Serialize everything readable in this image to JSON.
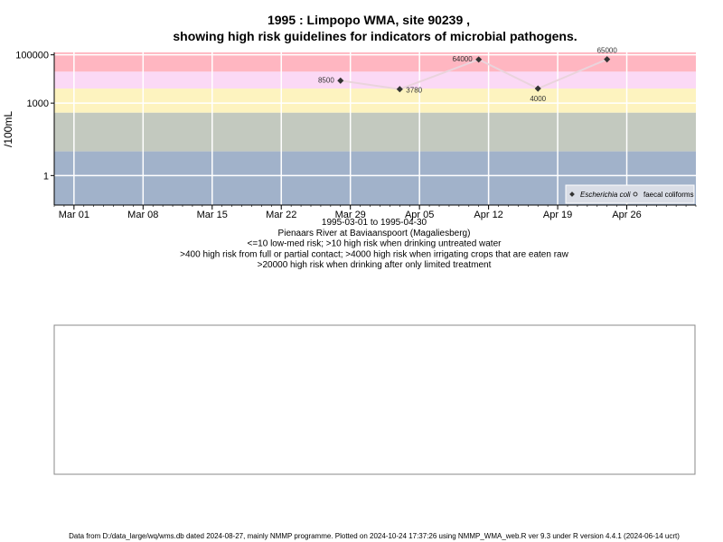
{
  "chart_data": {
    "type": "line",
    "title": "1995 : Limpopo WMA, site 90239 ,",
    "subtitle": "showing high risk guidelines for indicators of microbial pathogens.",
    "ylabel": "/100mL",
    "x_notes": [
      "1995-03-01 to 1995-04-30",
      "Pienaars River at Baviaanspoort (Magaliesberg)",
      "<=10 low-med risk; >10 high risk when drinking untreated water",
      ">400 high risk from full or partial contact; >4000 high risk when irrigating crops that are eaten raw",
      ">20000 high risk when drinking after only limited treatment"
    ],
    "footer": "Data from D:/data_large/wq/wms.db dated 2024-08-27, mainly NMMP programme. Plotted on 2024-10-24 17:37:26 using NMMP_WMA_web.R ver 9.3 under R version 4.4.1 (2024-06-14 ucrt)",
    "log_y": true,
    "grid": true,
    "legend_position": "bottom-right",
    "x": [
      "1995-03-28",
      "1995-04-03",
      "1995-04-11",
      "1995-04-17",
      "1995-04-24"
    ],
    "xlim": [
      "1995-02-27",
      "1995-05-03"
    ],
    "xticks": [
      {
        "value": "1995-03-01",
        "label": "Mar 01"
      },
      {
        "value": "1995-03-08",
        "label": "Mar 08"
      },
      {
        "value": "1995-03-15",
        "label": "Mar 15"
      },
      {
        "value": "1995-03-22",
        "label": "Mar 22"
      },
      {
        "value": "1995-03-29",
        "label": "Mar 29"
      },
      {
        "value": "1995-04-05",
        "label": "Apr 05"
      },
      {
        "value": "1995-04-12",
        "label": "Apr 12"
      },
      {
        "value": "1995-04-19",
        "label": "Apr 19"
      },
      {
        "value": "1995-04-26",
        "label": "Apr 26"
      }
    ],
    "ylim": [
      0.06,
      126000
    ],
    "yticks": [
      1,
      1000,
      100000
    ],
    "bands": [
      {
        "from": 20000,
        "to": 126000,
        "color": "#ffb6c1"
      },
      {
        "from": 4000,
        "to": 20000,
        "color": "#fbd9f5"
      },
      {
        "from": 400,
        "to": 4000,
        "color": "#fdf3bf"
      },
      {
        "from": 10,
        "to": 400,
        "color": "#c3c9bf"
      },
      {
        "from": 0.06,
        "to": 10,
        "color": "#a1b2ca"
      }
    ],
    "line_color": "#ead4dc",
    "series": [
      {
        "name": "Escherichia coli",
        "color": "#333333",
        "values": [
          8500,
          3780,
          64000,
          4000,
          65000
        ]
      },
      {
        "name": "faecal coliforms",
        "color": "#333333",
        "values": [
          null,
          null,
          null,
          null,
          null
        ]
      }
    ]
  }
}
